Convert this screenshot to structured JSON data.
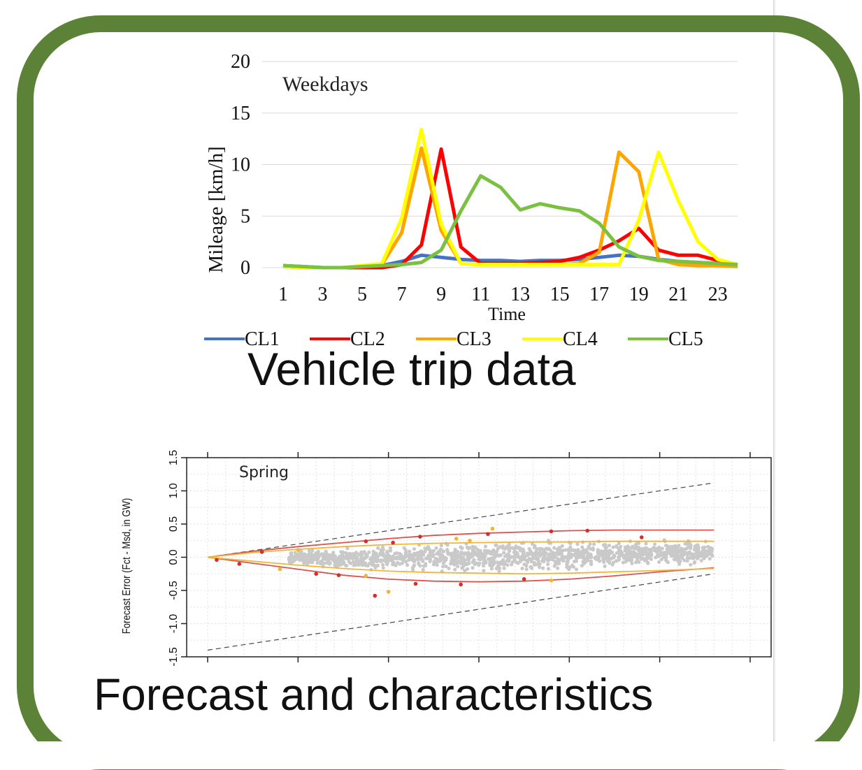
{
  "captions": {
    "vehicle": "Vehicle trip data",
    "forecast": "Forecast and characteristics"
  },
  "chart_data": [
    {
      "type": "line",
      "title": "Weekdays",
      "xlabel": "Time",
      "ylabel": "Mileage  [km/h]",
      "ylim": [
        0,
        20
      ],
      "yticks": [
        0,
        5,
        10,
        15,
        20
      ],
      "xticks": [
        1,
        3,
        5,
        7,
        9,
        11,
        13,
        15,
        17,
        19,
        21,
        23
      ],
      "x": [
        1,
        2,
        3,
        4,
        5,
        6,
        7,
        8,
        9,
        10,
        11,
        12,
        13,
        14,
        15,
        16,
        17,
        18,
        19,
        20,
        21,
        22,
        23,
        24
      ],
      "grid": "horizontal",
      "legend": "bottom",
      "series": [
        {
          "name": "CL1",
          "color": "#4472c4",
          "values": [
            0.2,
            0.1,
            0,
            0,
            0.1,
            0.2,
            0.6,
            1.2,
            1.0,
            0.8,
            0.7,
            0.7,
            0.6,
            0.7,
            0.7,
            0.8,
            1.0,
            1.2,
            1.1,
            0.8,
            0.6,
            0.5,
            0.4,
            0.3
          ]
        },
        {
          "name": "CL2",
          "color": "#ff0000",
          "values": [
            0.1,
            0,
            0,
            0,
            0,
            0,
            0.3,
            2.2,
            11.5,
            2.0,
            0.4,
            0.4,
            0.4,
            0.5,
            0.6,
            1.0,
            1.7,
            2.6,
            3.8,
            1.7,
            1.2,
            1.2,
            0.7,
            0.3
          ]
        },
        {
          "name": "CL3",
          "color": "#ffa500",
          "values": [
            0.1,
            0,
            0,
            0,
            0.1,
            0.3,
            3.4,
            11.6,
            3.6,
            0.4,
            0.3,
            0.3,
            0.3,
            0.3,
            0.3,
            0.4,
            1.5,
            11.2,
            9.3,
            0.8,
            0.3,
            0.2,
            0.2,
            0.1
          ]
        },
        {
          "name": "CL4",
          "color": "#ffff00",
          "values": [
            0.1,
            0,
            0,
            0,
            0.2,
            0.4,
            4.8,
            13.4,
            4.2,
            0.4,
            0.3,
            0.3,
            0.3,
            0.3,
            0.3,
            0.3,
            0.3,
            0.3,
            4.6,
            11.2,
            6.5,
            2.5,
            0.8,
            0.3
          ]
        },
        {
          "name": "CL5",
          "color": "#7ac142",
          "values": [
            0.2,
            0.1,
            0,
            0,
            0.1,
            0.2,
            0.3,
            0.5,
            1.7,
            5.5,
            8.9,
            7.8,
            5.6,
            6.2,
            5.8,
            5.5,
            4.3,
            2.0,
            1.1,
            0.7,
            0.6,
            0.5,
            0.4,
            0.3
          ]
        }
      ]
    },
    {
      "type": "scatter",
      "title": "Spring",
      "ylabel": "Forecast Error (Fct - Msd, in GW)",
      "ylim": [
        -1.5,
        1.5
      ],
      "yticks": [
        "1.5",
        "1.0",
        "0.5",
        "0.0",
        "-0.5",
        "-1.0",
        "-1.5"
      ],
      "xlim": [
        0,
        6
      ],
      "grid": "dotted",
      "reference_lines": [
        {
          "style": "dashed",
          "color": "#444444",
          "x": [
            0,
            5.6
          ],
          "y": [
            0,
            1.12
          ]
        },
        {
          "style": "dashed",
          "color": "#444444",
          "x": [
            0,
            5.6
          ],
          "y": [
            -1.4,
            -0.25
          ]
        }
      ],
      "envelopes": [
        {
          "color": "#d9534f",
          "x": [
            0,
            0.5,
            1,
            1.5,
            2,
            2.5,
            3,
            3.5,
            4,
            4.5,
            5,
            5.6
          ],
          "upper": [
            0,
            0.09,
            0.16,
            0.22,
            0.28,
            0.33,
            0.36,
            0.38,
            0.4,
            0.41,
            0.41,
            0.41
          ],
          "lower": [
            0,
            -0.09,
            -0.18,
            -0.27,
            -0.33,
            -0.36,
            -0.37,
            -0.36,
            -0.33,
            -0.28,
            -0.22,
            -0.16
          ]
        },
        {
          "color": "#f0b53a",
          "x": [
            0,
            0.5,
            1,
            1.5,
            2,
            2.5,
            3,
            3.5,
            4,
            4.5,
            5,
            5.6
          ],
          "upper": [
            0,
            0.07,
            0.12,
            0.16,
            0.19,
            0.21,
            0.22,
            0.23,
            0.23,
            0.24,
            0.24,
            0.24
          ],
          "lower": [
            0,
            -0.06,
            -0.12,
            -0.17,
            -0.21,
            -0.23,
            -0.24,
            -0.25,
            -0.24,
            -0.22,
            -0.2,
            -0.17
          ]
        }
      ],
      "highlight_points": [
        {
          "x": 0.1,
          "y": -0.04
        },
        {
          "x": 0.35,
          "y": -0.1
        },
        {
          "x": 0.8,
          "y": -0.18
        },
        {
          "x": 1.2,
          "y": -0.25
        },
        {
          "x": 1.45,
          "y": -0.27
        },
        {
          "x": 1.75,
          "y": -0.28
        },
        {
          "x": 1.75,
          "y": 0.24
        },
        {
          "x": 1.85,
          "y": -0.58
        },
        {
          "x": 2.0,
          "y": -0.52
        },
        {
          "x": 2.35,
          "y": 0.31
        },
        {
          "x": 2.3,
          "y": -0.4
        },
        {
          "x": 2.75,
          "y": 0.28
        },
        {
          "x": 2.8,
          "y": -0.41
        },
        {
          "x": 3.1,
          "y": 0.35
        },
        {
          "x": 3.15,
          "y": 0.43
        },
        {
          "x": 3.5,
          "y": -0.33
        },
        {
          "x": 3.8,
          "y": 0.39
        },
        {
          "x": 3.8,
          "y": -0.35
        },
        {
          "x": 4.2,
          "y": 0.4
        },
        {
          "x": 4.8,
          "y": 0.3
        },
        {
          "x": 1.0,
          "y": 0.11
        },
        {
          "x": 0.6,
          "y": 0.08
        },
        {
          "x": 2.05,
          "y": 0.22
        },
        {
          "x": 2.9,
          "y": 0.25
        }
      ]
    }
  ]
}
